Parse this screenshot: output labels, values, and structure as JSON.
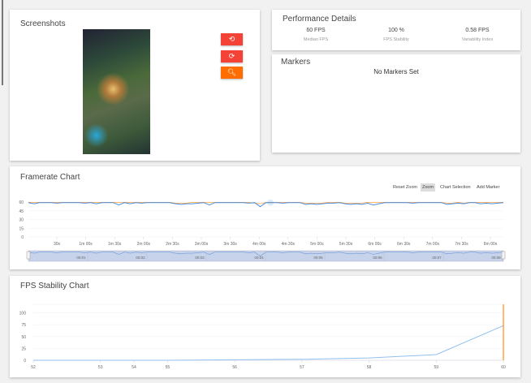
{
  "screenshots": {
    "title": "Screenshots",
    "buttons": [
      {
        "icon": "rotate-left-icon",
        "glyph": "⟲",
        "color": "#f44336"
      },
      {
        "icon": "rotate-right-icon",
        "glyph": "⟳",
        "color": "#f44336"
      },
      {
        "icon": "zoom-icon",
        "glyph": "🔍︎",
        "color": "#ff6d00"
      }
    ]
  },
  "performance": {
    "title": "Performance Details",
    "stats": [
      {
        "value": "60 FPS",
        "label": "Median FPS"
      },
      {
        "value": "100 %",
        "label": "FPS Stability"
      },
      {
        "value": "0.58 FPS",
        "label": "Variability Index"
      }
    ]
  },
  "markers": {
    "title": "Markers",
    "empty": "No Markers Set"
  },
  "framerate": {
    "title": "Framerate Chart",
    "toolbar": [
      "Reset Zoom",
      "Zoom",
      "Chart Selection",
      "Add Marker"
    ],
    "active_tool": "Zoom"
  },
  "stability": {
    "title": "FPS Stability Chart"
  },
  "chart_data": [
    {
      "type": "line",
      "yticks": [
        "60",
        "45",
        "30",
        "15",
        "0"
      ],
      "ylim": [
        0,
        60
      ],
      "xticks": [
        "30s",
        "1m 00s",
        "1m 30s",
        "2m 00s",
        "2m 30s",
        "3m 00s",
        "3m 30s",
        "4m 00s",
        "4m 30s",
        "5m 00s",
        "5m 30s",
        "6m 00s",
        "6m 30s",
        "7m 00s",
        "7m 30s",
        "8m 00s"
      ],
      "navigator_ticks": [
        "00:01",
        "00:02",
        "00:03",
        "00:04",
        "00:05",
        "00:06",
        "00:07",
        "00:08"
      ],
      "xlim_seconds": [
        0,
        505
      ],
      "series": [
        {
          "color": "#4a90e2",
          "values": [
            59,
            57,
            59,
            59,
            59,
            58,
            59,
            59,
            59,
            59,
            58,
            59,
            57,
            59,
            59,
            59,
            55,
            59,
            57,
            59,
            58,
            59,
            59,
            59,
            59,
            59,
            57,
            56,
            57,
            57,
            58,
            59,
            55,
            59,
            59,
            59,
            59,
            59,
            59,
            58,
            59,
            52,
            59,
            59,
            59,
            58,
            59,
            59,
            59,
            56,
            57,
            56,
            57,
            58,
            58,
            59,
            57,
            56,
            57,
            56,
            58,
            55,
            57,
            59,
            59,
            59,
            59,
            59,
            58,
            59,
            59,
            59,
            59,
            59,
            56,
            57,
            58,
            57,
            59,
            59,
            57,
            58,
            57,
            58,
            59
          ]
        },
        {
          "color": "#ffa040",
          "values": [
            59.5,
            59.5,
            59.5,
            59.5,
            59.5,
            59.5,
            59.5,
            59.5,
            59.5,
            59.5,
            59.5,
            59.5,
            59.5,
            59.5,
            59.5,
            59.5,
            59.5,
            59.5,
            59.5,
            59.5,
            59.5,
            59.5,
            59.5,
            59.5,
            59.5,
            59.5,
            58,
            58,
            58,
            59.5,
            59.5,
            59.5,
            59.5,
            59.5,
            59.5,
            59.5,
            59.5,
            59.5,
            59.5,
            59.5,
            58,
            57,
            59.5,
            59.5,
            59.5,
            59.5,
            59.5,
            59.5,
            59.5,
            58,
            58,
            58,
            58,
            59.5,
            59.5,
            59.5,
            58,
            58,
            58,
            58,
            59.5,
            59.5,
            59.5,
            59.5,
            59.5,
            59.5,
            59.5,
            59.5,
            59.5,
            59.5,
            59.5,
            59.5,
            59.5,
            59.5,
            58,
            58,
            59.5,
            58,
            59.5,
            59.5,
            59.5,
            59.5,
            59.5,
            59.5,
            59.5
          ]
        }
      ]
    },
    {
      "type": "line",
      "categories": [
        "52",
        "53",
        "54",
        "55",
        "56",
        "57",
        "58",
        "59",
        "60"
      ],
      "yticks": [
        "100",
        "75",
        "50",
        "25",
        "0"
      ],
      "ylim": [
        0,
        118
      ],
      "series": [
        {
          "color": "#90c0f0",
          "values": [
            0,
            0,
            0,
            0,
            1,
            2,
            5,
            12,
            73
          ]
        }
      ],
      "marker": {
        "x": "60",
        "color": "#ff8c1a"
      }
    }
  ]
}
